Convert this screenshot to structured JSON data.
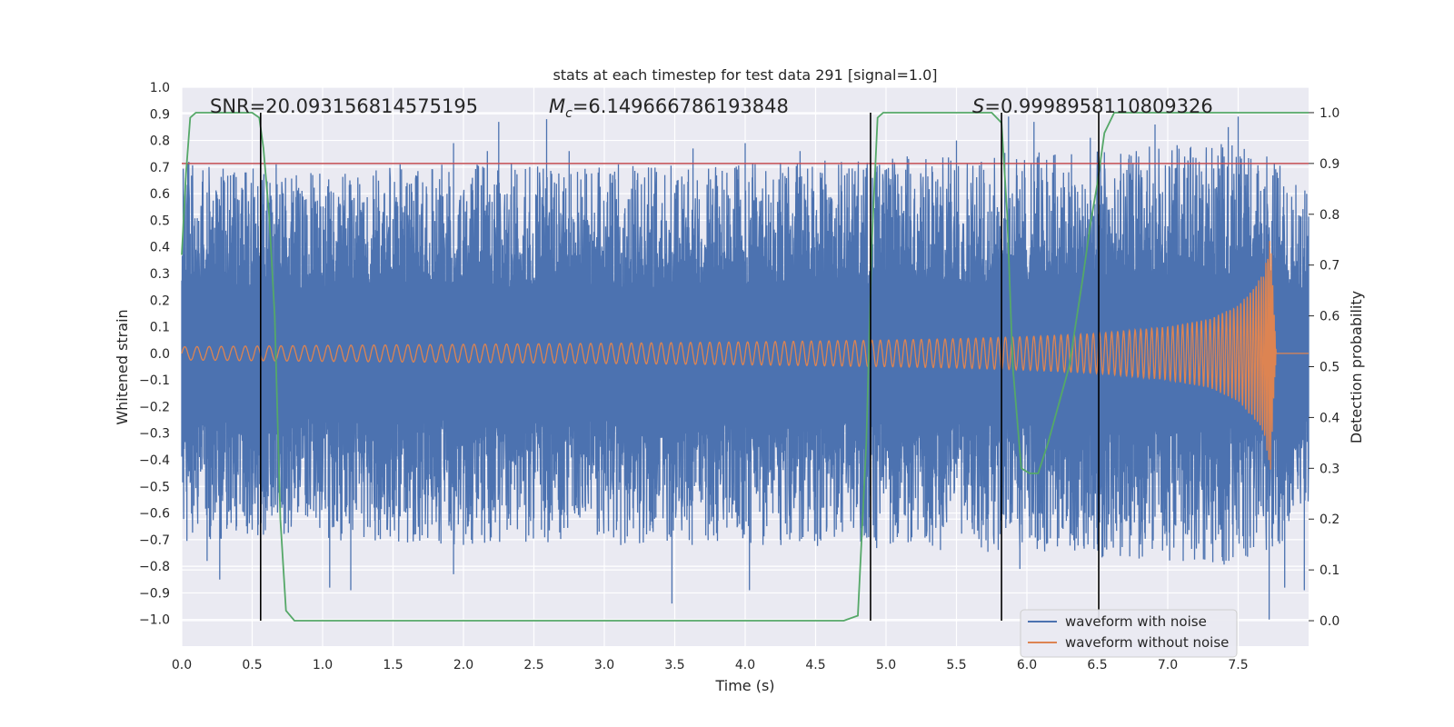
{
  "chart_data": {
    "type": "line",
    "title": "stats at each timestep for test data 291 [signal=1.0]",
    "xlabel": "Time (s)",
    "ylabel": "Whitened strain",
    "y2label": "Detection probability",
    "xlim": [
      0.0,
      8.0
    ],
    "ylim": [
      -1.1,
      1.0
    ],
    "y2lim": [
      -0.05,
      1.05
    ],
    "x_ticks": [
      "0.0",
      "0.5",
      "1.0",
      "1.5",
      "2.0",
      "2.5",
      "3.0",
      "3.5",
      "4.0",
      "4.5",
      "5.0",
      "5.5",
      "6.0",
      "6.5",
      "7.0",
      "7.5"
    ],
    "y_ticks": [
      "1.0",
      "0.9",
      "0.8",
      "0.7",
      "0.6",
      "0.5",
      "0.4",
      "0.3",
      "0.2",
      "0.1",
      "0.0",
      "−0.1",
      "−0.2",
      "−0.3",
      "−0.4",
      "−0.5",
      "−0.6",
      "−0.7",
      "−0.8",
      "−0.9",
      "−1.0"
    ],
    "y2_ticks": [
      "1.0",
      "0.9",
      "0.8",
      "0.7",
      "0.6",
      "0.5",
      "0.4",
      "0.3",
      "0.2",
      "0.1",
      "0.0"
    ],
    "annotations": {
      "snr": "SNR=20.093156814575195",
      "mc_symbol": "M",
      "mc_sub": "c",
      "mc_value": "=6.149666786193848",
      "s_symbol": "S",
      "s_value": "=0.9998958110809326"
    },
    "threshold_y2": 0.9,
    "vertical_lines_x": [
      0.56,
      4.89,
      5.82,
      6.51
    ],
    "series": [
      {
        "name": "waveform with noise",
        "color": "#4c72b0",
        "envelope": [
          [
            0.0,
            0.72,
            -0.72
          ],
          [
            0.5,
            0.7,
            -0.7
          ],
          [
            1.0,
            0.68,
            -0.7
          ],
          [
            2.0,
            0.72,
            -0.72
          ],
          [
            3.0,
            0.7,
            -0.72
          ],
          [
            4.0,
            0.72,
            -0.72
          ],
          [
            5.0,
            0.74,
            -0.74
          ],
          [
            6.0,
            0.76,
            -0.76
          ],
          [
            7.0,
            0.78,
            -0.78
          ],
          [
            7.5,
            0.8,
            -0.8
          ],
          [
            7.8,
            0.72,
            -0.72
          ],
          [
            8.0,
            0.6,
            -0.6
          ]
        ],
        "peaks": [
          [
            0.05,
            0.72
          ],
          [
            0.18,
            -0.78
          ],
          [
            0.27,
            -0.85
          ],
          [
            0.45,
            0.68
          ],
          [
            0.67,
            0.71
          ],
          [
            0.93,
            0.67
          ],
          [
            1.05,
            -0.88
          ],
          [
            1.2,
            -0.89
          ],
          [
            1.55,
            0.71
          ],
          [
            1.93,
            0.79
          ],
          [
            1.93,
            -0.83
          ],
          [
            2.17,
            0.76
          ],
          [
            2.25,
            0.87
          ],
          [
            2.59,
            0.88
          ],
          [
            2.75,
            0.76
          ],
          [
            3.1,
            0.71
          ],
          [
            3.43,
            0.67
          ],
          [
            3.48,
            -0.94
          ],
          [
            3.63,
            0.77
          ],
          [
            4.0,
            0.79
          ],
          [
            4.03,
            -0.89
          ],
          [
            4.39,
            0.76
          ],
          [
            4.84,
            0.69
          ],
          [
            5.15,
            0.74
          ],
          [
            5.5,
            0.8
          ],
          [
            5.87,
            0.89
          ],
          [
            5.95,
            -0.81
          ],
          [
            6.05,
            0.87
          ],
          [
            6.45,
            0.81
          ],
          [
            6.91,
            0.86
          ],
          [
            7.11,
            -0.78
          ],
          [
            7.43,
            0.85
          ],
          [
            7.5,
            0.89
          ],
          [
            7.72,
            -1.0
          ],
          [
            7.83,
            -0.88
          ],
          [
            7.97,
            -0.89
          ]
        ]
      },
      {
        "name": "waveform without noise",
        "color": "#dd8452",
        "envelope": [
          [
            0.0,
            0.025
          ],
          [
            1.0,
            0.03
          ],
          [
            2.0,
            0.034
          ],
          [
            3.0,
            0.038
          ],
          [
            4.0,
            0.043
          ],
          [
            5.0,
            0.05
          ],
          [
            5.5,
            0.055
          ],
          [
            6.0,
            0.063
          ],
          [
            6.5,
            0.075
          ],
          [
            7.0,
            0.1
          ],
          [
            7.3,
            0.13
          ],
          [
            7.5,
            0.18
          ],
          [
            7.6,
            0.24
          ],
          [
            7.68,
            0.3
          ],
          [
            7.73,
            0.44
          ],
          [
            7.76,
            0.12
          ],
          [
            7.77,
            0.0
          ],
          [
            8.0,
            0.0
          ]
        ],
        "chirp_end": 7.77
      },
      {
        "name": "detection probability",
        "color": "#55a868",
        "axis": "y2",
        "x": [
          0.0,
          0.03,
          0.06,
          0.1,
          0.3,
          0.5,
          0.55,
          0.58,
          0.62,
          0.66,
          0.7,
          0.74,
          0.8,
          0.9,
          1.0,
          2.0,
          2.9,
          3.0,
          4.0,
          4.7,
          4.8,
          4.86,
          4.9,
          4.94,
          4.98,
          5.05,
          5.2,
          5.5,
          5.75,
          5.82,
          5.86,
          5.9,
          5.96,
          6.02,
          6.08,
          6.15,
          6.2,
          6.3,
          6.4,
          6.45,
          6.5,
          6.55,
          6.62,
          6.7,
          7.0,
          7.5,
          7.8,
          8.0
        ],
        "y": [
          0.72,
          0.88,
          0.99,
          1.0,
          1.0,
          1.0,
          0.99,
          0.93,
          0.8,
          0.6,
          0.2,
          0.02,
          0.0,
          0.0,
          0.0,
          0.0,
          0.0,
          0.0,
          0.0,
          0.0,
          0.01,
          0.35,
          0.75,
          0.99,
          1.0,
          1.0,
          1.0,
          1.0,
          1.0,
          0.98,
          0.8,
          0.5,
          0.3,
          0.29,
          0.29,
          0.35,
          0.4,
          0.5,
          0.68,
          0.78,
          0.86,
          0.96,
          1.0,
          1.0,
          1.0,
          1.0,
          1.0,
          1.0
        ]
      }
    ],
    "legend": {
      "position": "lower-right",
      "entries": [
        "waveform with noise",
        "waveform without noise"
      ]
    }
  }
}
